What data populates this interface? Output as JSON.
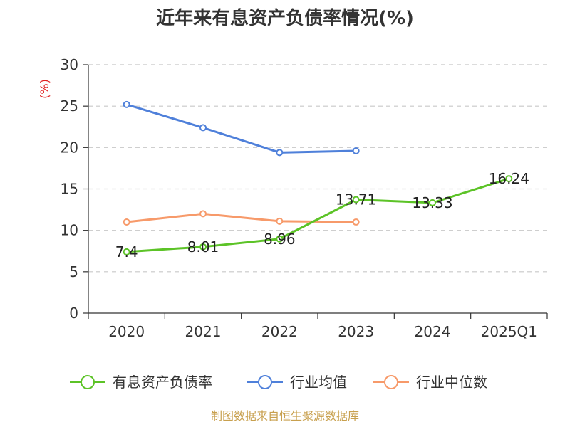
{
  "chart_data": {
    "type": "line",
    "title": "近年来有息资产负债率情况(%)",
    "ylabel": "(%)",
    "xlabel": "",
    "ylim": [
      0,
      30
    ],
    "yticks": [
      0,
      5,
      10,
      15,
      20,
      25,
      30
    ],
    "grid": true,
    "categories": [
      "2020",
      "2021",
      "2022",
      "2023",
      "2024",
      "2025Q1"
    ],
    "series": [
      {
        "name": "有息资产负债率",
        "color": "#5cc327",
        "values": [
          7.4,
          8.01,
          8.96,
          13.71,
          13.33,
          16.24
        ],
        "labels": [
          "7.4",
          "8.01",
          "8.96",
          "13.71",
          "13.33",
          "16.24"
        ]
      },
      {
        "name": "行业均值",
        "color": "#4f80da",
        "values": [
          25.2,
          22.4,
          19.4,
          19.6,
          null,
          null
        ]
      },
      {
        "name": "行业中位数",
        "color": "#f79a6a",
        "values": [
          11.0,
          12.0,
          11.1,
          11.0,
          null,
          null
        ]
      }
    ],
    "legend_position": "bottom"
  },
  "source": {
    "text": "制图数据来自恒生聚源数据库",
    "color": "#c8a04e"
  },
  "ylabel_color": "#e02020"
}
